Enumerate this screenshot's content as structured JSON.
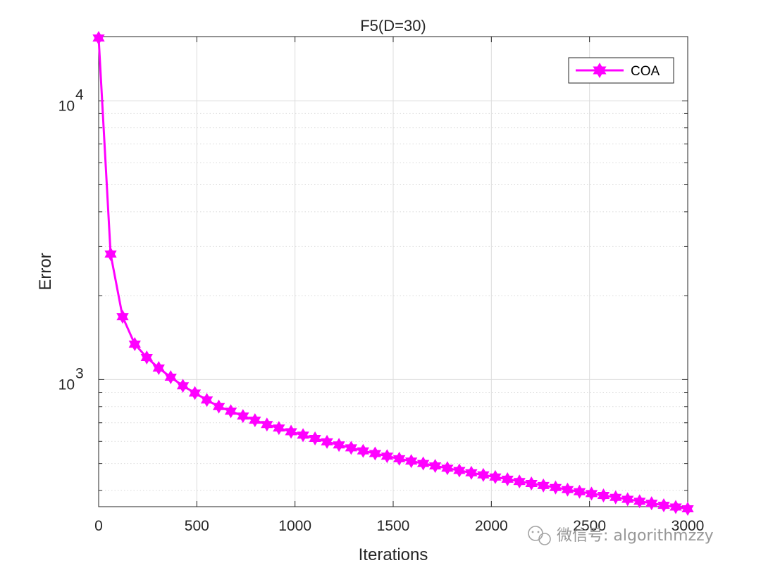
{
  "chart_data": {
    "type": "line",
    "title": "F5(D=30)",
    "xlabel": "Iterations",
    "ylabel": "Error",
    "xlim": [
      0,
      3000
    ],
    "ylim": [
      350,
      17000
    ],
    "yscale": "log",
    "grid": true,
    "legend_position": "top-right",
    "xticks": [
      0,
      500,
      1000,
      1500,
      2000,
      2500,
      3000
    ],
    "xtick_labels": [
      "0",
      "500",
      "1000",
      "1500",
      "2000",
      "2500",
      "3000"
    ],
    "yticks": [
      {
        "value": 1000,
        "base": "10",
        "exponent": "3"
      },
      {
        "value": 10000,
        "base": "10",
        "exponent": "4"
      }
    ],
    "series": [
      {
        "name": "COA",
        "color": "#ff00ff",
        "marker": "hexagram",
        "x": [
          0,
          61,
          122,
          184,
          245,
          306,
          367,
          429,
          490,
          551,
          612,
          673,
          735,
          796,
          857,
          918,
          980,
          1041,
          1102,
          1163,
          1224,
          1286,
          1347,
          1408,
          1469,
          1531,
          1592,
          1653,
          1714,
          1776,
          1837,
          1898,
          1959,
          2020,
          2082,
          2143,
          2204,
          2265,
          2327,
          2388,
          2449,
          2510,
          2571,
          2633,
          2694,
          2755,
          2816,
          2878,
          2939,
          3000
        ],
        "y": [
          16800,
          2820,
          1680,
          1340,
          1200,
          1100,
          1020,
          950,
          895,
          845,
          800,
          770,
          740,
          715,
          690,
          670,
          650,
          632,
          615,
          598,
          583,
          569,
          555,
          543,
          531,
          520,
          510,
          500,
          490,
          481,
          472,
          463,
          455,
          447,
          439,
          431,
          424,
          417,
          410,
          403,
          396,
          390,
          384,
          378,
          372,
          366,
          360,
          354,
          349,
          344
        ]
      }
    ]
  },
  "watermark": {
    "text": "微信号: algorithmzzy",
    "icon": "wechat-icon"
  }
}
